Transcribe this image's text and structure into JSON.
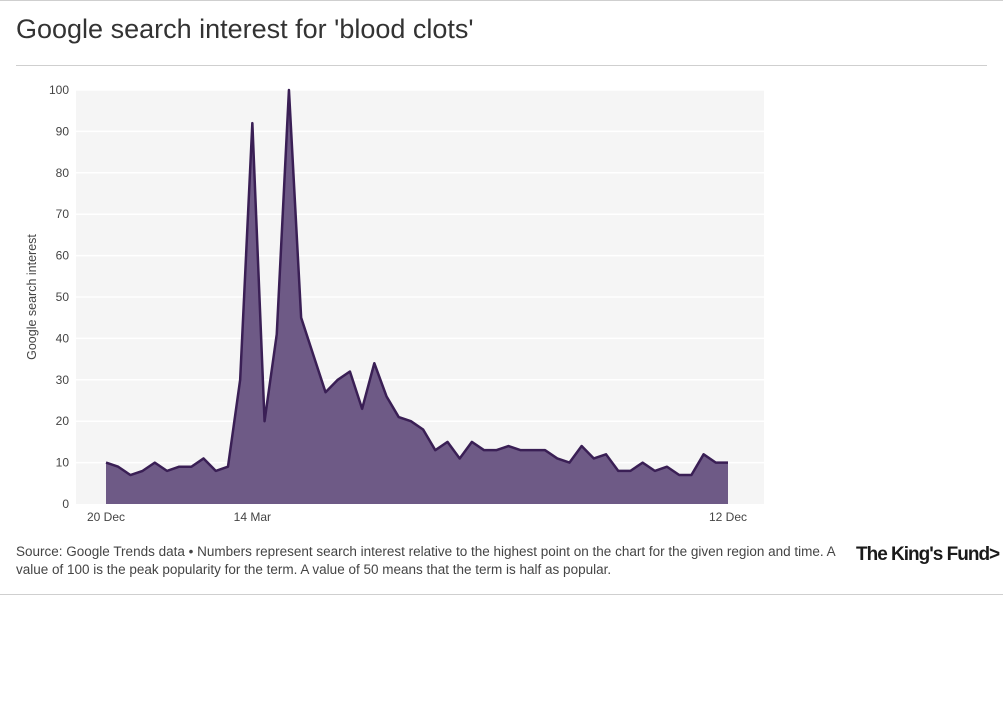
{
  "header": {
    "title": "Google search interest for 'blood clots'"
  },
  "footer": {
    "source": "Source: Google Trends data • Numbers represent search interest relative to the highest point on the chart for the given region and time. A value of 100 is the peak popularity for the term. A value of 50 means that the term is half as popular.",
    "brand": "The King's Fund>"
  },
  "colors": {
    "line": "#3a1f55",
    "fill": "#6e5a86",
    "plot_bg": "#f5f5f5",
    "grid": "#ffffff"
  },
  "chart_data": {
    "type": "area",
    "title": "Google search interest for 'blood clots'",
    "ylabel": "Google search interest",
    "xlabel": "",
    "ylim": [
      0,
      100
    ],
    "yticks": [
      0,
      10,
      20,
      30,
      40,
      50,
      60,
      70,
      80,
      90,
      100
    ],
    "xtick_labels": [
      {
        "index": 0,
        "label": "20 Dec"
      },
      {
        "index": 12,
        "label": "14 Mar"
      },
      {
        "index": 51,
        "label": "12 Dec"
      }
    ],
    "grid": true,
    "series": [
      {
        "values": [
          10,
          9,
          7,
          8,
          10,
          8,
          9,
          9,
          11,
          8,
          9,
          30,
          92,
          20,
          41,
          100,
          45,
          36,
          27,
          30,
          32,
          23,
          34,
          26,
          21,
          20,
          18,
          13,
          15,
          11,
          15,
          13,
          13,
          14,
          13,
          13,
          13,
          11,
          10,
          14,
          11,
          12,
          8,
          8,
          10,
          8,
          9,
          7,
          7,
          12,
          10,
          10
        ]
      }
    ]
  }
}
